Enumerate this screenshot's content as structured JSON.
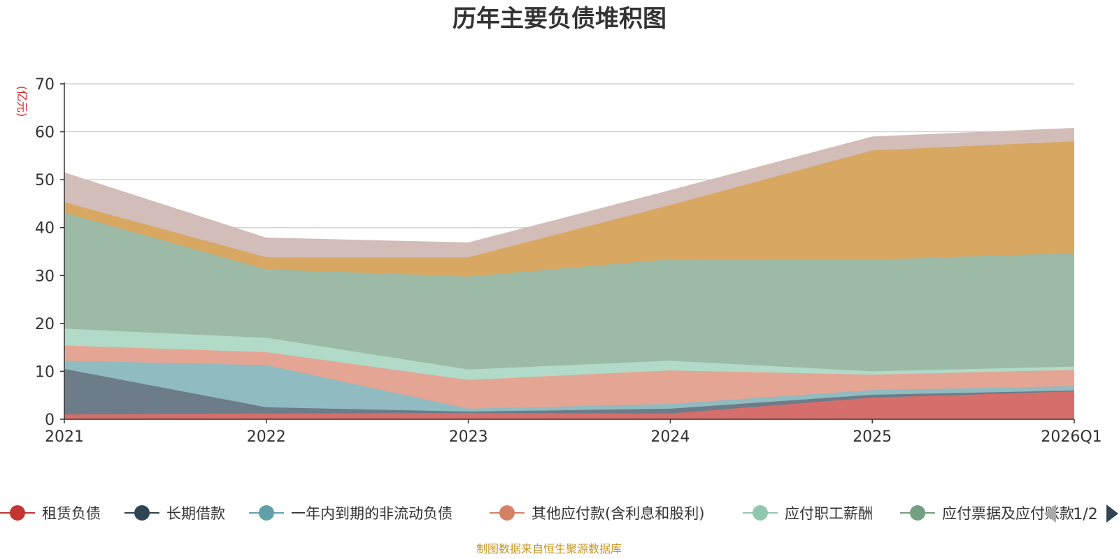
{
  "chart_data": {
    "type": "area",
    "stacked": true,
    "title": "历年主要负债堆积图",
    "unit_label": "(亿元)",
    "x": [
      "2021",
      "2022",
      "2023",
      "2024",
      "2025",
      "2026Q1"
    ],
    "ylim": [
      0,
      70
    ],
    "yticks": [
      0,
      10,
      20,
      30,
      40,
      50,
      60,
      70
    ],
    "grid": true,
    "legend_position": "bottom",
    "series": [
      {
        "name": "租赁负债",
        "legend_color": "#c23531",
        "fill": "#d66e6b",
        "values": [
          1.0,
          1.2,
          1.3,
          1.2,
          4.5,
          5.8
        ]
      },
      {
        "name": "长期借款",
        "legend_color": "#2f4554",
        "fill": "#6d7c89",
        "values": [
          9.5,
          1.3,
          0.3,
          1.0,
          0.6,
          0.2
        ]
      },
      {
        "name": "一年内到期的非流动负债",
        "legend_color": "#61a0a8",
        "fill": "#90bbc1",
        "values": [
          1.7,
          8.8,
          0.6,
          1.0,
          1.0,
          0.9
        ]
      },
      {
        "name": "其他应付款(含利息和股利)",
        "legend_color": "#d48265",
        "fill": "#e4a594",
        "values": [
          3.2,
          2.7,
          6.0,
          7.0,
          3.2,
          3.4
        ]
      },
      {
        "name": "应付职工薪酬",
        "legend_color": "#91c7ae",
        "fill": "#b1dac8",
        "values": [
          3.5,
          3.0,
          2.2,
          2.0,
          0.7,
          0.7
        ]
      },
      {
        "name": "应付票据及应付账款",
        "legend_color": "#749f83",
        "fill": "#9cbaa5",
        "values": [
          24.2,
          14.3,
          19.4,
          21.2,
          23.3,
          23.7
        ]
      },
      {
        "name": "",
        "legend_color": "#ca8622",
        "fill": "#d8a762",
        "values": [
          2.2,
          2.5,
          4.0,
          11.3,
          22.8,
          23.3
        ]
      },
      {
        "name": "",
        "legend_color": "#bda29a",
        "fill": "#d2bdb8",
        "values": [
          6.1,
          4.0,
          3.0,
          3.0,
          2.8,
          2.7
        ]
      }
    ],
    "legend_visible_count": 6,
    "legend_page": "1/2",
    "source": "制图数据来自恒生聚源数据库"
  }
}
